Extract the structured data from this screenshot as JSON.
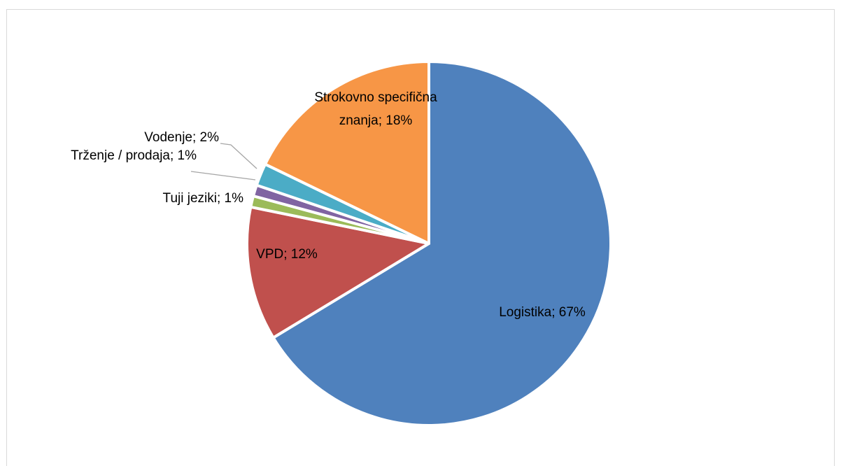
{
  "chart_data": {
    "type": "pie",
    "values": [
      67,
      12,
      1,
      1,
      2,
      18
    ],
    "value_labels": [
      [
        "Logistika; 67%"
      ],
      [
        "VPD; 12%"
      ],
      [
        "Tuji jeziki; 1%"
      ],
      [
        "Trženje / prodaja; 1%"
      ],
      [
        "Vodenje; 2%"
      ],
      [
        "Strokovno specifična",
        "znanja; 18%"
      ]
    ],
    "colors": [
      "#4f81bd",
      "#c0504d",
      "#9bbb59",
      "#8064a2",
      "#4bacc6",
      "#f79646"
    ]
  }
}
